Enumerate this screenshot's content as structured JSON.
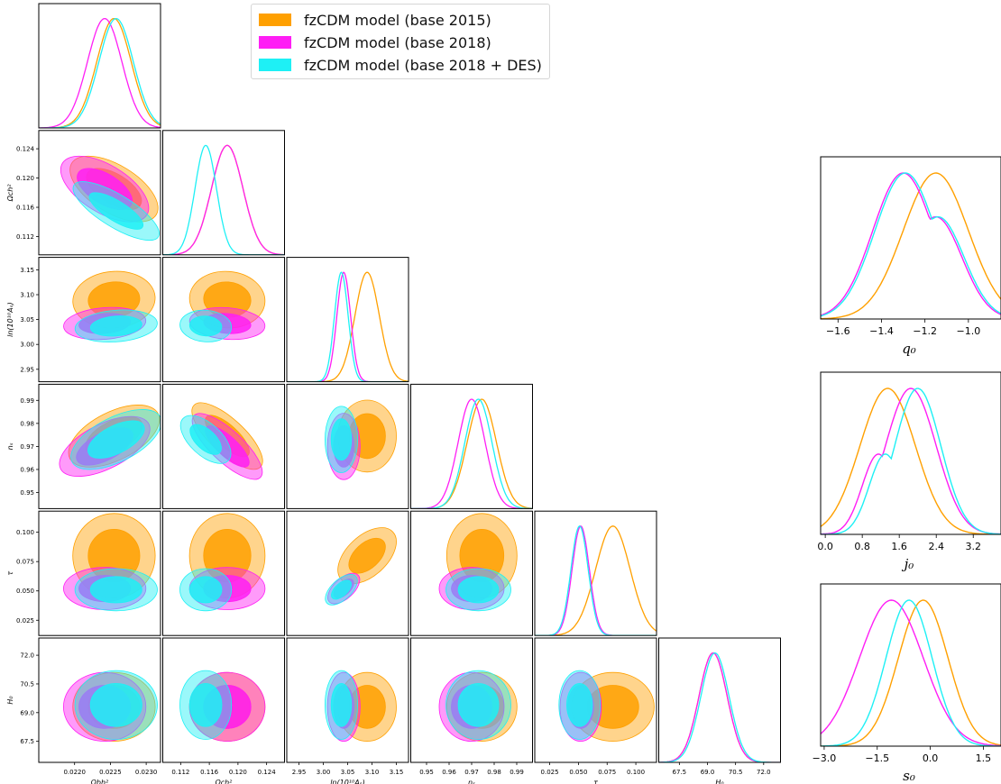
{
  "chart_data": {
    "type": "corner-plot",
    "legend": {
      "placement": "top-center",
      "entries": [
        {
          "label": "fzCDM model (base 2015)",
          "color": "#ffa000"
        },
        {
          "label": "fzCDM model (base 2018)",
          "color": "#ff1ef5"
        },
        {
          "label": "fzCDM model (base 2018 + DES)",
          "color": "#1ef0f5"
        }
      ]
    },
    "parameters": [
      {
        "name": "omega_b",
        "label": "Ωbh²",
        "display": "Ω_b h^2",
        "range": [
          0.0215,
          0.0232
        ],
        "ticks": [
          "0.0220",
          "0.0225",
          "0.0230"
        ],
        "tick_values": [
          0.022,
          0.0225,
          0.023
        ]
      },
      {
        "name": "omega_c",
        "label": "Ωch²",
        "display": "Ω_c h^2",
        "range": [
          0.1095,
          0.1265
        ],
        "ticks": [
          "0.112",
          "0.116",
          "0.120",
          "0.124"
        ],
        "tick_values": [
          0.112,
          0.116,
          0.12,
          0.124
        ]
      },
      {
        "name": "logA",
        "label": "ln(10¹⁰Aₛ)",
        "display": "ln(10^10 A_s)",
        "range": [
          2.925,
          3.175
        ],
        "ticks": [
          "2.95",
          "3.00",
          "3.05",
          "3.10",
          "3.15"
        ],
        "tick_values": [
          2.95,
          3.0,
          3.05,
          3.1,
          3.15
        ]
      },
      {
        "name": "ns",
        "label": "nₛ",
        "display": "n_s",
        "range": [
          0.943,
          0.997
        ],
        "ticks": [
          "0.95",
          "0.96",
          "0.97",
          "0.98",
          "0.99"
        ],
        "tick_values": [
          0.95,
          0.96,
          0.97,
          0.98,
          0.99
        ]
      },
      {
        "name": "tau",
        "label": "τ",
        "display": "τ",
        "range": [
          0.012,
          0.118
        ],
        "ticks": [
          "0.025",
          "0.050",
          "0.075",
          "0.100"
        ],
        "tick_values": [
          0.025,
          0.05,
          0.075,
          0.1
        ]
      },
      {
        "name": "H0",
        "label": "H₀",
        "display": "H_0",
        "range": [
          66.4,
          72.9
        ],
        "ticks": [
          "67.5",
          "69.0",
          "70.5",
          "72.0"
        ],
        "tick_values": [
          67.5,
          69.0,
          70.5,
          72.0
        ]
      }
    ],
    "posteriors": {
      "base2015": {
        "mean": [
          0.02255,
          0.1185,
          3.09,
          0.9745,
          0.08,
          69.3
        ],
        "sigma": [
          0.00024,
          0.0022,
          0.025,
          0.0065,
          0.015,
          0.75
        ]
      },
      "base2018": {
        "mean": [
          0.02242,
          0.1185,
          3.042,
          0.97,
          0.052,
          69.3
        ],
        "sigma": [
          0.00024,
          0.0022,
          0.014,
          0.006,
          0.0075,
          0.75
        ]
      },
      "base2018_DES": {
        "mean": [
          0.02258,
          0.1155,
          3.037,
          0.973,
          0.051,
          69.4
        ],
        "sigma": [
          0.00024,
          0.0015,
          0.014,
          0.006,
          0.0075,
          0.75
        ]
      }
    },
    "derived": [
      {
        "name": "q0",
        "xlabel": "q₀",
        "range": [
          -1.68,
          -0.85
        ],
        "ticks": [
          "−1.6",
          "−1.4",
          "−1.2",
          "−1.0"
        ],
        "tick_values": [
          -1.6,
          -1.4,
          -1.2,
          -1.0
        ],
        "series": {
          "base2015": {
            "mean": -1.15,
            "sigma": 0.15
          },
          "base2018": {
            "mean": -1.3,
            "sigma": 0.14
          },
          "base2018_DES": {
            "mean": -1.29,
            "sigma": 0.14
          }
        }
      },
      {
        "name": "j0",
        "xlabel": "j₀",
        "range": [
          -0.1,
          3.8
        ],
        "ticks": [
          "0.0",
          "0.8",
          "1.6",
          "2.4",
          "3.2"
        ],
        "tick_values": [
          0.0,
          0.8,
          1.6,
          2.4,
          3.2
        ],
        "series": {
          "base2015": {
            "mean": 1.35,
            "sigma": 0.6
          },
          "base2018": {
            "mean": 1.85,
            "sigma": 0.55
          },
          "base2018_DES": {
            "mean": 2.0,
            "sigma": 0.5
          }
        }
      },
      {
        "name": "s0",
        "xlabel": "s₀",
        "range": [
          -3.1,
          2.0
        ],
        "ticks": [
          "−3.0",
          "−1.5",
          "0.0",
          "1.5"
        ],
        "tick_values": [
          -3.0,
          -1.5,
          0.0,
          1.5
        ],
        "series": {
          "base2015": {
            "mean": -0.2,
            "sigma": 0.7
          },
          "base2018": {
            "mean": -1.1,
            "sigma": 0.9
          },
          "base2018_DES": {
            "mean": -0.6,
            "sigma": 0.65
          }
        }
      }
    ],
    "grid": false
  }
}
